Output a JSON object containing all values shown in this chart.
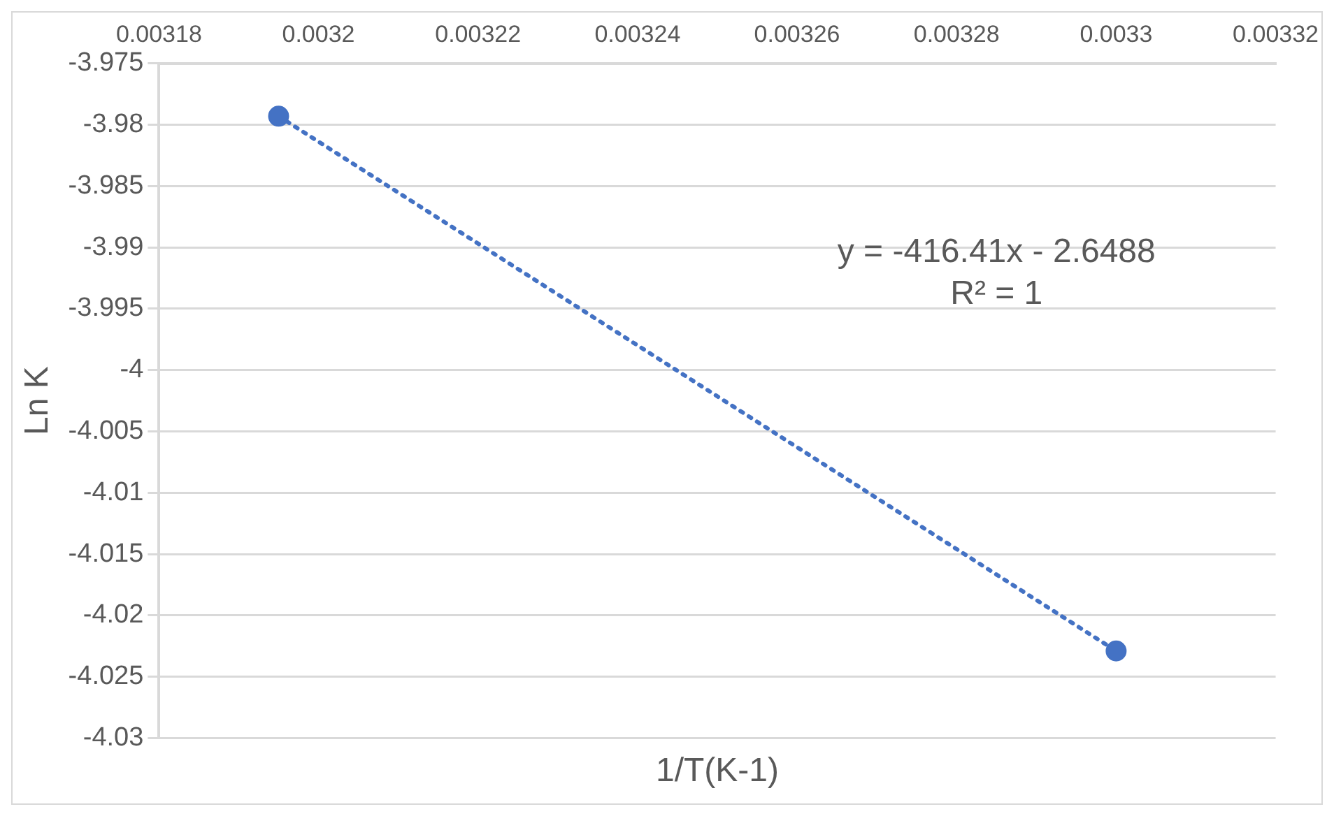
{
  "chart_data": {
    "type": "scatter",
    "xlabel": "1/T(K-1)",
    "ylabel": "Ln K",
    "xlim": [
      0.00318,
      0.00332
    ],
    "xticks": [
      0.00318,
      0.0032,
      0.00322,
      0.00324,
      0.00326,
      0.00328,
      0.0033,
      0.00332
    ],
    "ylim": [
      -4.03,
      -3.975
    ],
    "yticks": [
      -4.03,
      -4.025,
      -4.02,
      -4.015,
      -4.01,
      -4.005,
      -4,
      -3.995,
      -3.99,
      -3.985,
      -3.98,
      -3.975
    ],
    "x": [
      0.003195,
      0.0033
    ],
    "grid": "y",
    "legend": false,
    "marker": "circle",
    "series": [
      {
        "type": "scatter",
        "color": "#4472c4",
        "values": [
          -3.9793,
          -4.0229
        ]
      },
      {
        "type": "line",
        "color": "#4472c4",
        "line_style": "dotted",
        "marker": "none",
        "values": [
          -3.9793,
          -4.0229
        ]
      }
    ],
    "annotations": [
      "y = -416.41x - 2.6488",
      "R² = 1"
    ]
  }
}
